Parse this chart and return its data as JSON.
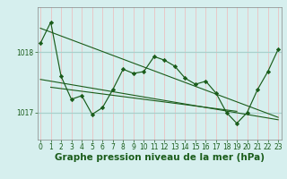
{
  "title": "Graphe pression niveau de la mer (hPa)",
  "bg_color": "#d6efee",
  "vgrid_color": "#e8c8c8",
  "hgrid_color": "#a8d0cc",
  "line_color": "#1a5c1a",
  "marker_color": "#1a5c1a",
  "tick_label_color": "#1a5c1a",
  "ylim": [
    1016.55,
    1018.75
  ],
  "xlim": [
    -0.3,
    23.3
  ],
  "yticks": [
    1017,
    1018
  ],
  "xticks": [
    0,
    1,
    2,
    3,
    4,
    5,
    6,
    7,
    8,
    9,
    10,
    11,
    12,
    13,
    14,
    15,
    16,
    17,
    18,
    19,
    20,
    21,
    22,
    23
  ],
  "series1": [
    1018.15,
    1018.5,
    1017.6,
    1017.22,
    1017.28,
    1016.97,
    1017.08,
    1017.38,
    1017.72,
    1017.65,
    1017.68,
    1017.93,
    1017.87,
    1017.77,
    1017.57,
    1017.47,
    1017.52,
    1017.32,
    1017.0,
    1016.82,
    1017.0,
    1017.38,
    1017.68,
    1018.05
  ],
  "trend1_x": [
    0,
    23
  ],
  "trend1_y": [
    1018.4,
    1016.92
  ],
  "trend2_x": [
    0,
    23
  ],
  "trend2_y": [
    1017.55,
    1016.88
  ],
  "trend3_x": [
    1,
    19
  ],
  "trend3_y": [
    1017.42,
    1017.02
  ],
  "title_fontsize": 7.5,
  "tick_fontsize": 5.5
}
